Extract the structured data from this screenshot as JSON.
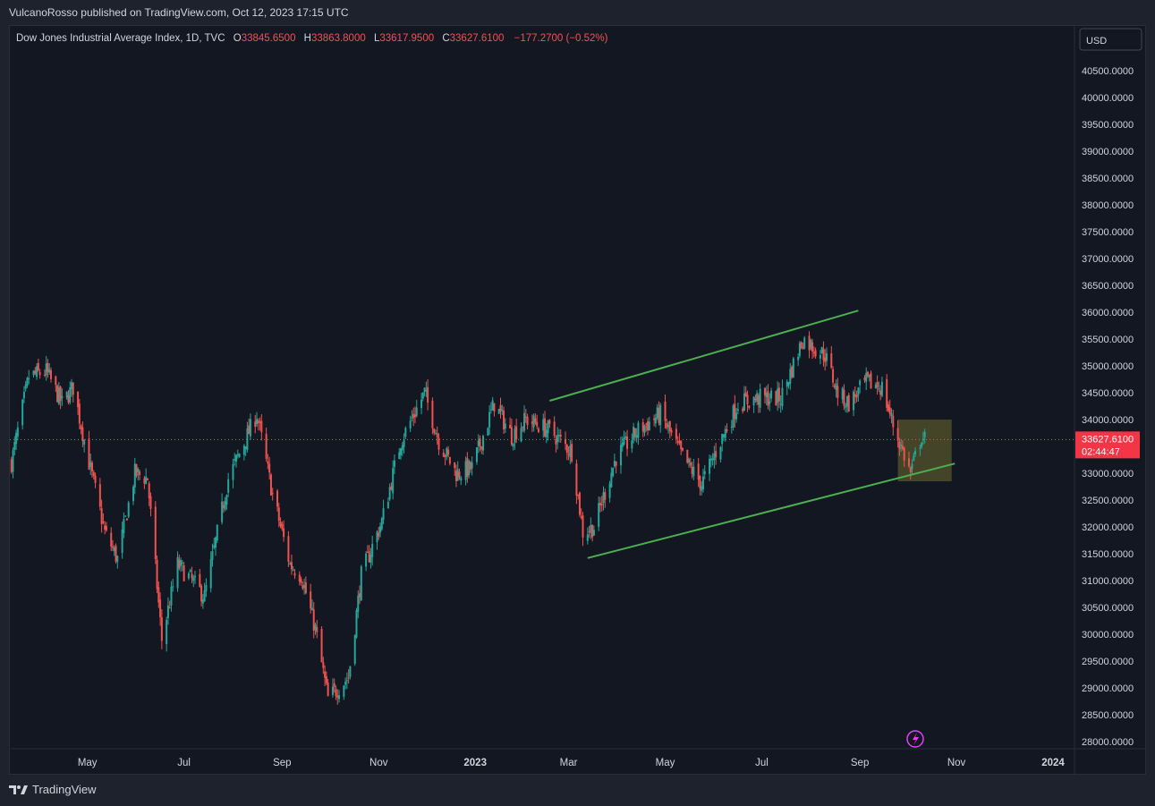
{
  "header": {
    "published": "VulcanoRosso published on TradingView.com, Oct 12, 2023 17:15 UTC"
  },
  "legend": {
    "symbol": "Dow Jones Industrial Average Index, 1D, TVC",
    "o_label": "O",
    "o_value": "33845.6500",
    "h_label": "H",
    "h_value": "33863.8000",
    "l_label": "L",
    "l_value": "33617.9500",
    "c_label": "C",
    "c_value": "33627.6100",
    "change": "−177.2700 (−0.52%)"
  },
  "currency": "USD",
  "price_tag": {
    "price": "33627.6100",
    "countdown": "02:44:47"
  },
  "footer": {
    "brand": "TradingView"
  },
  "colors": {
    "up": "#26a69a",
    "down": "#ef5350",
    "trend": "#4caf50",
    "box": "#6b6a2e",
    "accent": "#e040fb"
  },
  "chart_data": {
    "type": "candlestick",
    "title": "Dow Jones Industrial Average Index, 1D, TVC",
    "ylim": [
      27900,
      41000
    ],
    "y_ticks": [
      "40500.0000",
      "40000.0000",
      "39500.0000",
      "39000.0000",
      "38500.0000",
      "38000.0000",
      "37500.0000",
      "37000.0000",
      "36500.0000",
      "36000.0000",
      "35500.0000",
      "35000.0000",
      "34500.0000",
      "34000.0000",
      "33500.0000",
      "33000.0000",
      "32500.0000",
      "32000.0000",
      "31500.0000",
      "31000.0000",
      "30500.0000",
      "30000.0000",
      "29500.0000",
      "29000.0000",
      "28500.0000",
      "28000.0000"
    ],
    "x_ticks": [
      "May",
      "Jul",
      "Sep",
      "Nov",
      "2023",
      "Mar",
      "May",
      "Jul",
      "Sep",
      "Nov",
      "2024"
    ],
    "x_tick_dates": [
      "2022-05-01",
      "2022-07-01",
      "2022-09-01",
      "2022-11-01",
      "2023-01-01",
      "2023-03-01",
      "2023-05-01",
      "2023-07-01",
      "2023-09-01",
      "2023-11-01",
      "2024-01-01"
    ],
    "x_range": [
      "2022-03-13",
      "2024-01-14"
    ],
    "close_path": [
      [
        "2022-03-14",
        33200
      ],
      [
        "2022-03-25",
        34800
      ],
      [
        "2022-04-05",
        34900
      ],
      [
        "2022-04-15",
        34300
      ],
      [
        "2022-04-22",
        34600
      ],
      [
        "2022-05-02",
        33200
      ],
      [
        "2022-05-12",
        31900
      ],
      [
        "2022-05-20",
        31400
      ],
      [
        "2022-05-31",
        33000
      ],
      [
        "2022-06-08",
        32900
      ],
      [
        "2022-06-17",
        29900
      ],
      [
        "2022-06-27",
        31300
      ],
      [
        "2022-07-06",
        31000
      ],
      [
        "2022-07-14",
        30700
      ],
      [
        "2022-07-29",
        32900
      ],
      [
        "2022-08-16",
        34100
      ],
      [
        "2022-08-26",
        32600
      ],
      [
        "2022-09-06",
        31300
      ],
      [
        "2022-09-13",
        31100
      ],
      [
        "2022-09-22",
        30100
      ],
      [
        "2022-09-30",
        28800
      ],
      [
        "2022-10-13",
        29200
      ],
      [
        "2022-10-21",
        31100
      ],
      [
        "2022-11-03",
        32100
      ],
      [
        "2022-11-15",
        33600
      ],
      [
        "2022-11-30",
        34500
      ],
      [
        "2022-12-09",
        33600
      ],
      [
        "2022-12-20",
        33000
      ],
      [
        "2022-12-30",
        33100
      ],
      [
        "2023-01-13",
        34300
      ],
      [
        "2023-01-24",
        33700
      ],
      [
        "2023-02-02",
        34000
      ],
      [
        "2023-02-10",
        33900
      ],
      [
        "2023-02-17",
        33800
      ],
      [
        "2023-03-03",
        33400
      ],
      [
        "2023-03-10",
        31900
      ],
      [
        "2023-03-17",
        32000
      ],
      [
        "2023-03-31",
        33300
      ],
      [
        "2023-04-14",
        33800
      ],
      [
        "2023-04-28",
        34100
      ],
      [
        "2023-05-12",
        33300
      ],
      [
        "2023-05-24",
        32800
      ],
      [
        "2023-06-05",
        33600
      ],
      [
        "2023-06-16",
        34300
      ],
      [
        "2023-06-30",
        34400
      ],
      [
        "2023-07-13",
        34400
      ],
      [
        "2023-07-27",
        35500
      ],
      [
        "2023-08-10",
        35200
      ],
      [
        "2023-08-18",
        34500
      ],
      [
        "2023-08-25",
        34300
      ],
      [
        "2023-09-05",
        34700
      ],
      [
        "2023-09-15",
        34600
      ],
      [
        "2023-09-22",
        33900
      ],
      [
        "2023-10-03",
        33000
      ],
      [
        "2023-10-10",
        33700
      ],
      [
        "2023-10-12",
        33627.61
      ]
    ],
    "annotations": {
      "upper_channel": [
        [
          "2023-02-17",
          34350
        ],
        [
          "2023-08-31",
          36030
        ]
      ],
      "lower_channel": [
        [
          "2023-03-13",
          31420
        ],
        [
          "2023-10-31",
          33180
        ]
      ],
      "highlight_box": {
        "from": "2023-09-25",
        "to": "2023-10-29",
        "low": 32850,
        "high": 34000
      },
      "last_price_line": 33627.61
    }
  }
}
